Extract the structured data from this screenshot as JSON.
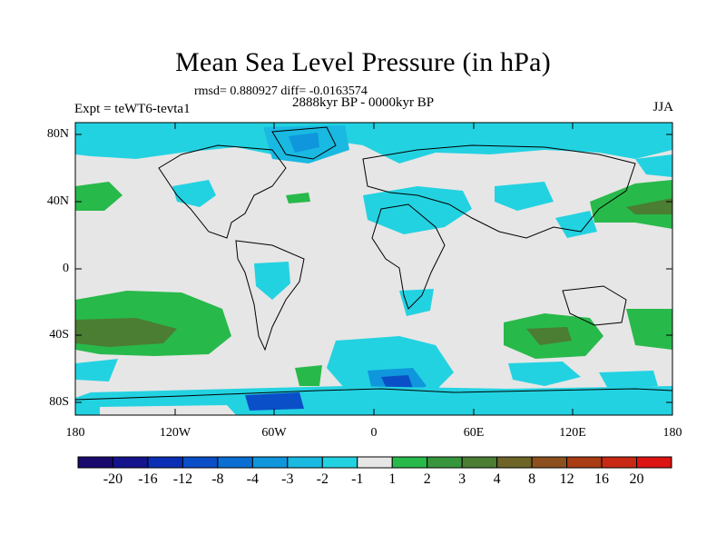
{
  "header": {
    "title": "Mean Sea Level Pressure (in hPa)",
    "stats": "rmsd= 0.880927 diff= -0.0163574",
    "period": "2888kyr BP - 0000kyr BP",
    "experiment": "Expt = teWT6-tevta1",
    "season": "JJA"
  },
  "axes": {
    "lat_labels": [
      "80N",
      "40N",
      "0",
      "40S",
      "80S"
    ],
    "lon_labels": [
      "180",
      "120W",
      "60W",
      "0",
      "60E",
      "120E",
      "180"
    ]
  },
  "colorbar": {
    "colors": [
      "#1a0a6e",
      "#14148c",
      "#0a2fb4",
      "#0a4ec8",
      "#0a6ed2",
      "#0f96dc",
      "#19b9e1",
      "#23d2e1",
      "#e6e6e6",
      "#28b94b",
      "#37963c",
      "#4b7d32",
      "#6e6428",
      "#8c501e",
      "#aa3c14",
      "#c82814",
      "#dc1414"
    ],
    "labels": [
      "-20",
      "-16",
      "-12",
      "-8",
      "-4",
      "-3",
      "-2",
      "-1",
      "1",
      "2",
      "3",
      "4",
      "8",
      "12",
      "16",
      "20"
    ]
  }
}
